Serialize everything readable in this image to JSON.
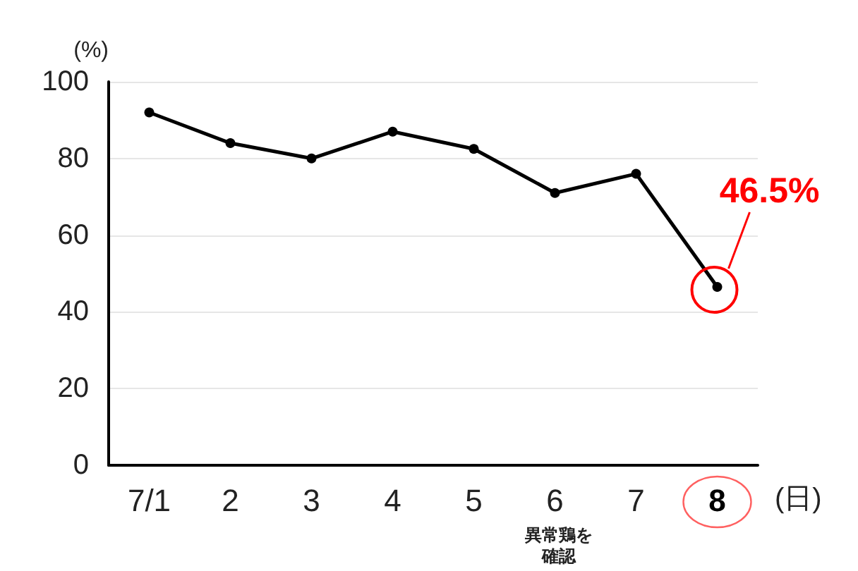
{
  "chart_data": {
    "type": "line",
    "ylabel": "(%)",
    "xlabel": "(日)",
    "categories": [
      "7/1",
      "2",
      "3",
      "4",
      "5",
      "6",
      "7",
      "8"
    ],
    "series": [
      {
        "color": "#000000",
        "values": [
          92,
          84,
          80,
          87,
          82.5,
          71,
          76,
          46.5
        ]
      }
    ],
    "ylim": [
      0,
      100
    ],
    "yticks": [
      0,
      20,
      40,
      60,
      80,
      100
    ],
    "grid": "y",
    "marker": "circle",
    "line_style": "solid",
    "annotations": [
      {
        "text": "46.5%",
        "x": "8",
        "y": 46.5
      },
      "異常鶏を確認"
    ]
  }
}
